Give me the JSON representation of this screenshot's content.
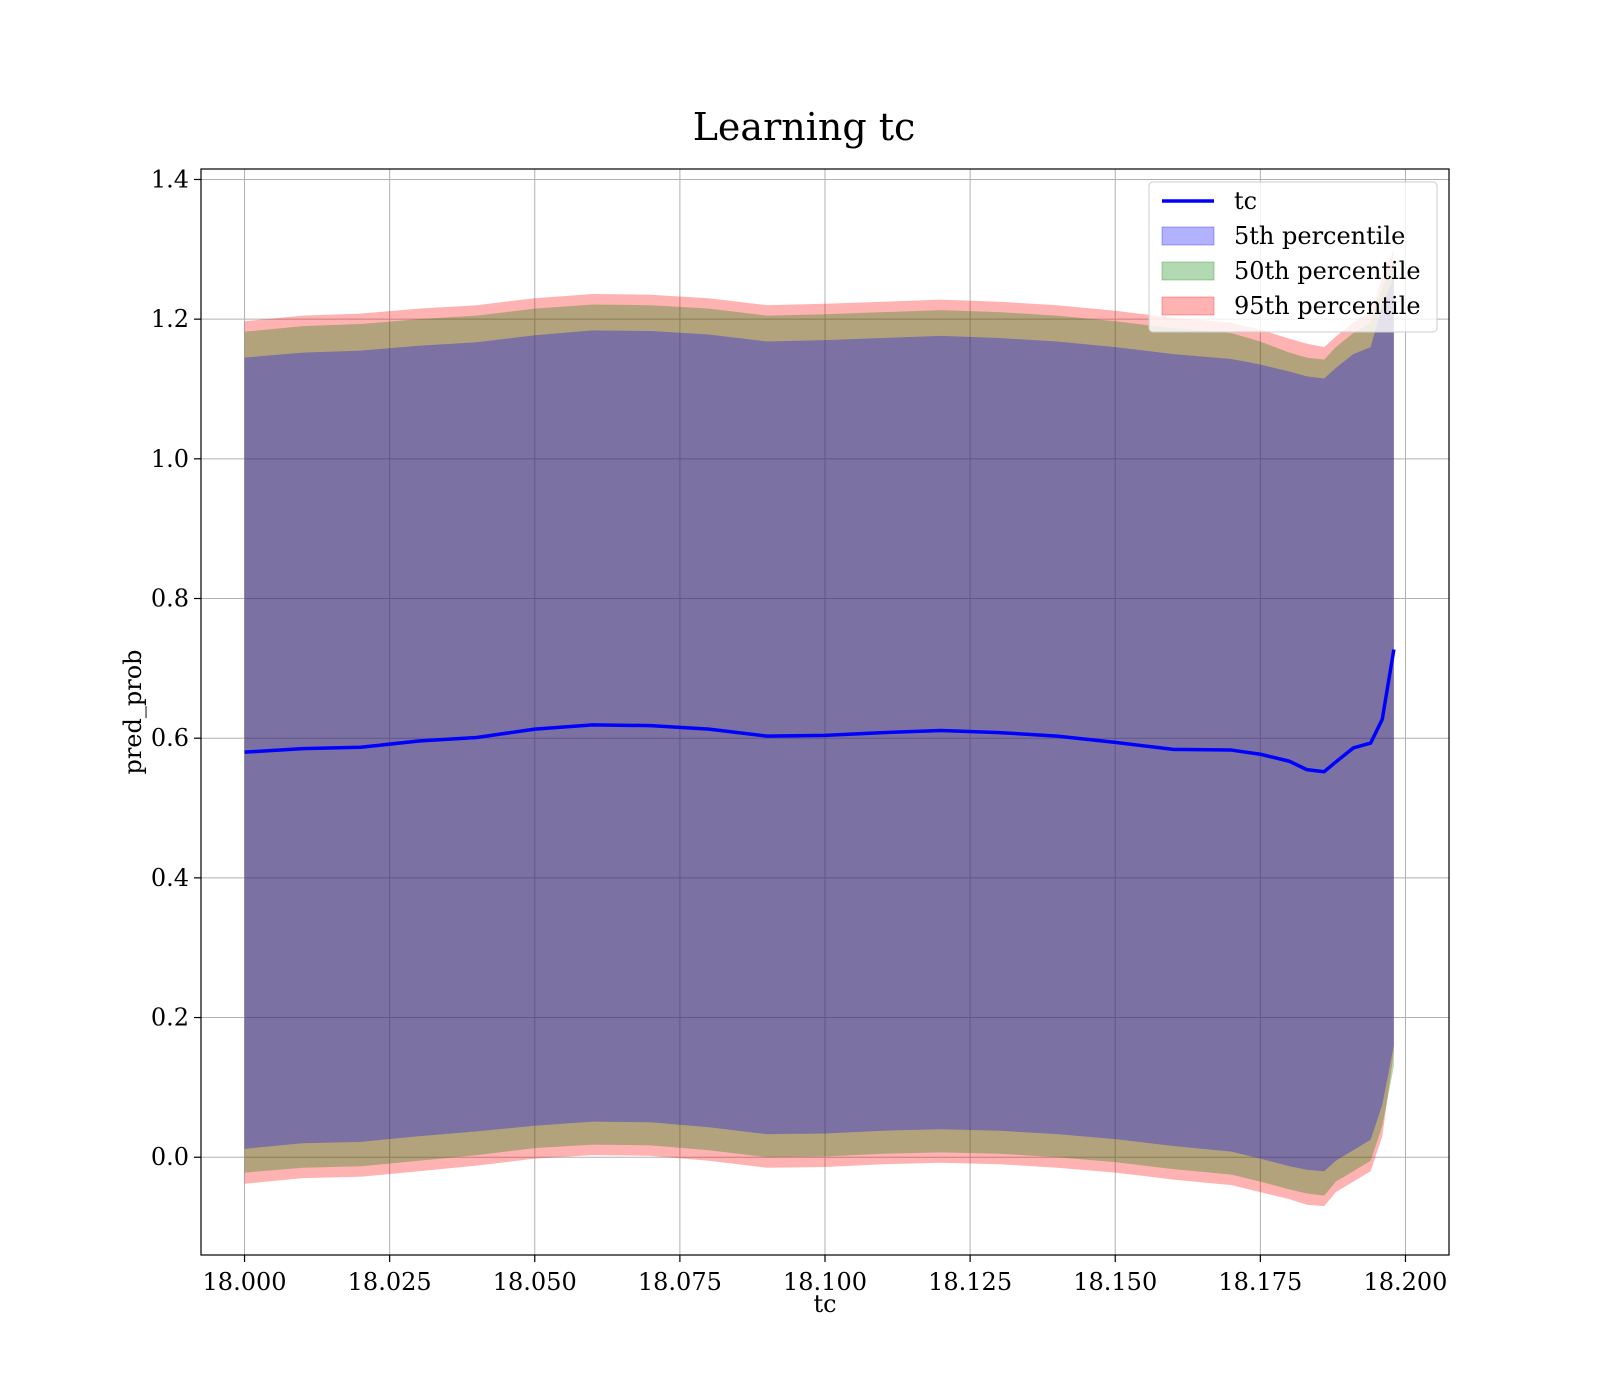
{
  "chart_data": {
    "type": "area",
    "title": "Learning tc",
    "xlabel": "tc",
    "ylabel": "pred_prob",
    "xlim": [
      17.9925,
      18.2075
    ],
    "ylim": [
      -0.14,
      1.415
    ],
    "xticks": [
      18.0,
      18.025,
      18.05,
      18.075,
      18.1,
      18.125,
      18.15,
      18.175,
      18.2
    ],
    "xtick_labels": [
      "18.000",
      "18.025",
      "18.050",
      "18.075",
      "18.100",
      "18.125",
      "18.150",
      "18.175",
      "18.200"
    ],
    "yticks": [
      0.0,
      0.2,
      0.4,
      0.6,
      0.8,
      1.0,
      1.2,
      1.4
    ],
    "ytick_labels": [
      "0.0",
      "0.2",
      "0.4",
      "0.6",
      "0.8",
      "1.0",
      "1.2",
      "1.4"
    ],
    "grid": true,
    "legend_position": "upper right",
    "x": [
      18.0,
      18.01,
      18.02,
      18.03,
      18.04,
      18.05,
      18.06,
      18.07,
      18.08,
      18.09,
      18.1,
      18.11,
      18.12,
      18.13,
      18.14,
      18.15,
      18.16,
      18.17,
      18.175,
      18.18,
      18.183,
      18.186,
      18.188,
      18.191,
      18.194,
      18.196,
      18.198
    ],
    "line": {
      "name": "tc",
      "color": "#0000ff",
      "values": [
        0.58,
        0.585,
        0.587,
        0.596,
        0.601,
        0.613,
        0.619,
        0.618,
        0.613,
        0.603,
        0.604,
        0.608,
        0.611,
        0.608,
        0.603,
        0.594,
        0.584,
        0.583,
        0.577,
        0.567,
        0.555,
        0.552,
        0.566,
        0.586,
        0.593,
        0.627,
        0.727
      ]
    },
    "bands": [
      {
        "name": "95th percentile",
        "color": "#ff0000",
        "opacity": 0.3,
        "upper": [
          1.197,
          1.205,
          1.208,
          1.215,
          1.22,
          1.23,
          1.236,
          1.235,
          1.23,
          1.22,
          1.222,
          1.225,
          1.228,
          1.225,
          1.22,
          1.212,
          1.202,
          1.195,
          1.185,
          1.172,
          1.165,
          1.16,
          1.175,
          1.195,
          1.21,
          1.26,
          1.3
        ],
        "lower": [
          -0.038,
          -0.03,
          -0.028,
          -0.02,
          -0.012,
          -0.002,
          0.003,
          0.002,
          -0.005,
          -0.015,
          -0.014,
          -0.01,
          -0.008,
          -0.01,
          -0.015,
          -0.022,
          -0.032,
          -0.04,
          -0.05,
          -0.06,
          -0.068,
          -0.07,
          -0.05,
          -0.035,
          -0.02,
          0.03,
          0.15
        ]
      },
      {
        "name": "50th percentile",
        "color": "#008000",
        "opacity": 0.3,
        "upper": [
          1.182,
          1.19,
          1.193,
          1.2,
          1.205,
          1.215,
          1.221,
          1.22,
          1.215,
          1.205,
          1.207,
          1.21,
          1.213,
          1.21,
          1.205,
          1.197,
          1.187,
          1.18,
          1.168,
          1.152,
          1.145,
          1.142,
          1.16,
          1.18,
          1.195,
          1.245,
          1.285
        ],
        "lower": [
          -0.022,
          -0.015,
          -0.013,
          -0.005,
          0.003,
          0.013,
          0.018,
          0.017,
          0.01,
          0.0,
          0.001,
          0.005,
          0.007,
          0.005,
          0.0,
          -0.007,
          -0.017,
          -0.025,
          -0.035,
          -0.046,
          -0.052,
          -0.055,
          -0.035,
          -0.02,
          -0.005,
          0.045,
          0.13
        ]
      },
      {
        "name": "5th percentile",
        "color": "#0000ff",
        "opacity": 0.3,
        "upper": [
          1.145,
          1.152,
          1.155,
          1.162,
          1.167,
          1.177,
          1.184,
          1.183,
          1.178,
          1.168,
          1.17,
          1.173,
          1.176,
          1.173,
          1.168,
          1.16,
          1.15,
          1.143,
          1.135,
          1.125,
          1.118,
          1.115,
          1.13,
          1.15,
          1.16,
          1.22,
          1.26
        ],
        "lower": [
          0.012,
          0.02,
          0.022,
          0.03,
          0.037,
          0.045,
          0.051,
          0.05,
          0.043,
          0.033,
          0.034,
          0.038,
          0.04,
          0.038,
          0.033,
          0.026,
          0.016,
          0.008,
          -0.002,
          -0.013,
          -0.018,
          -0.02,
          -0.005,
          0.01,
          0.025,
          0.075,
          0.16
        ]
      }
    ],
    "legend": [
      {
        "label": "tc",
        "kind": "line",
        "color": "#0000ff"
      },
      {
        "label": "5th percentile",
        "kind": "patch",
        "color": "#0000ff"
      },
      {
        "label": "50th percentile",
        "kind": "patch",
        "color": "#008000"
      },
      {
        "label": "95th percentile",
        "kind": "patch",
        "color": "#ff0000"
      }
    ]
  }
}
